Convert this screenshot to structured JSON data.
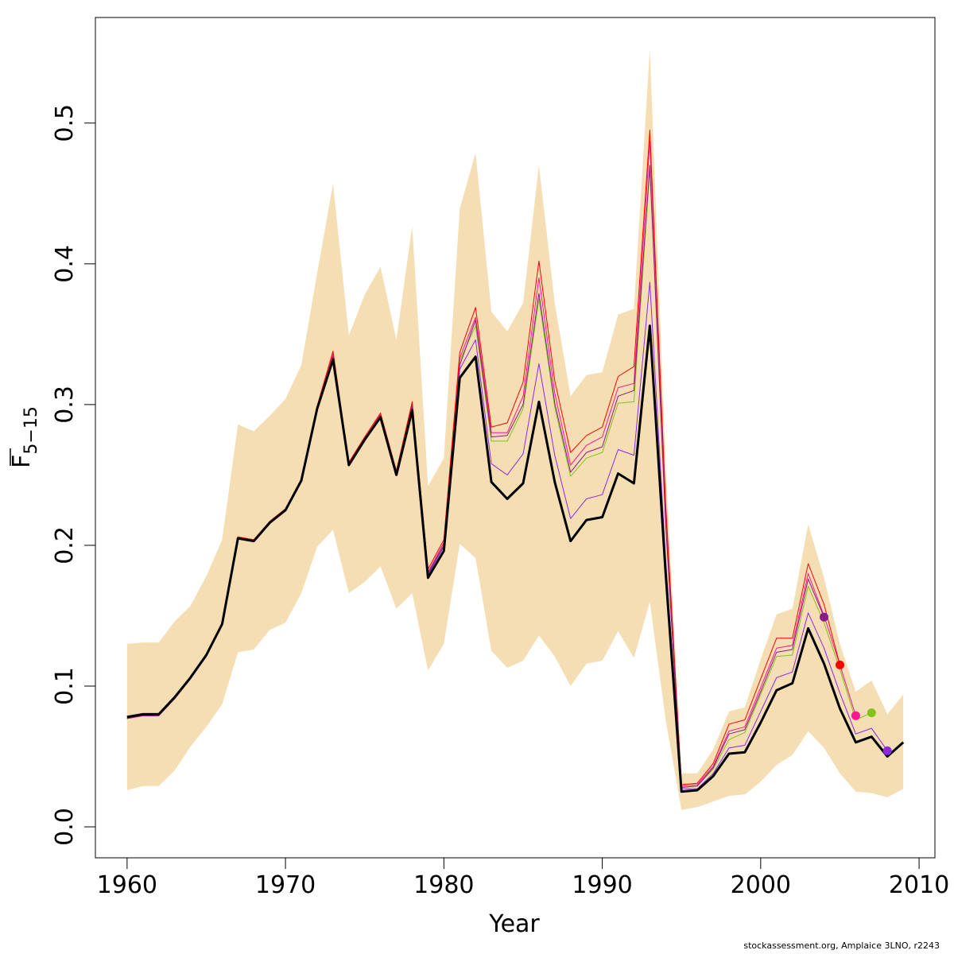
{
  "chart_data": {
    "type": "line",
    "xlabel": "Year",
    "ylabel_main": "F",
    "ylabel_sub": "5−15",
    "xlim": [
      1958,
      2011
    ],
    "ylim": [
      -0.022,
      0.575
    ],
    "x_ticks": [
      1960,
      1970,
      1980,
      1990,
      2000,
      2010
    ],
    "y_ticks": [
      0.0,
      0.1,
      0.2,
      0.3,
      0.4,
      0.5
    ],
    "y_tick_labels": [
      "0.0",
      "0.1",
      "0.2",
      "0.3",
      "0.4",
      "0.5"
    ],
    "band_color": "#F5DEB3",
    "confidence_band": {
      "years": [
        1960,
        1961,
        1962,
        1963,
        1964,
        1965,
        1966,
        1967,
        1968,
        1969,
        1970,
        1971,
        1972,
        1973,
        1974,
        1975,
        1976,
        1977,
        1978,
        1979,
        1980,
        1981,
        1982,
        1983,
        1984,
        1985,
        1986,
        1987,
        1988,
        1989,
        1990,
        1991,
        1992,
        1993,
        1994,
        1995,
        1996,
        1997,
        1998,
        1999,
        2000,
        2001,
        2002,
        2003,
        2004,
        2005,
        2006,
        2007,
        2008,
        2009
      ],
      "lower": [
        0.026,
        0.029,
        0.029,
        0.04,
        0.057,
        0.071,
        0.087,
        0.124,
        0.126,
        0.14,
        0.145,
        0.166,
        0.199,
        0.211,
        0.166,
        0.174,
        0.185,
        0.155,
        0.166,
        0.111,
        0.13,
        0.201,
        0.191,
        0.125,
        0.113,
        0.118,
        0.136,
        0.121,
        0.1,
        0.116,
        0.118,
        0.139,
        0.12,
        0.16,
        0.076,
        0.012,
        0.014,
        0.018,
        0.022,
        0.023,
        0.032,
        0.044,
        0.051,
        0.068,
        0.056,
        0.038,
        0.025,
        0.024,
        0.021,
        0.027
      ],
      "upper": [
        0.13,
        0.131,
        0.131,
        0.146,
        0.157,
        0.178,
        0.204,
        0.286,
        0.281,
        0.292,
        0.304,
        0.328,
        0.393,
        0.457,
        0.349,
        0.378,
        0.398,
        0.346,
        0.427,
        0.242,
        0.262,
        0.439,
        0.479,
        0.366,
        0.352,
        0.372,
        0.47,
        0.372,
        0.306,
        0.321,
        0.323,
        0.364,
        0.368,
        0.553,
        0.258,
        0.038,
        0.038,
        0.055,
        0.082,
        0.085,
        0.119,
        0.151,
        0.155,
        0.215,
        0.177,
        0.13,
        0.096,
        0.104,
        0.08,
        0.094
      ]
    },
    "series": [
      {
        "color": "#000000",
        "width": 3,
        "end_marker": false,
        "years": [
          1960,
          1961,
          1962,
          1963,
          1964,
          1965,
          1966,
          1967,
          1968,
          1969,
          1970,
          1971,
          1972,
          1973,
          1974,
          1975,
          1976,
          1977,
          1978,
          1979,
          1980,
          1981,
          1982,
          1983,
          1984,
          1985,
          1986,
          1987,
          1988,
          1989,
          1990,
          1991,
          1992,
          1993,
          1994,
          1995,
          1996,
          1997,
          1998,
          1999,
          2000,
          2001,
          2002,
          2003,
          2004,
          2005,
          2006,
          2007,
          2008,
          2009
        ],
        "values": [
          0.078,
          0.08,
          0.08,
          0.092,
          0.106,
          0.122,
          0.144,
          0.205,
          0.203,
          0.216,
          0.225,
          0.246,
          0.297,
          0.332,
          0.257,
          0.275,
          0.291,
          0.25,
          0.296,
          0.177,
          0.196,
          0.319,
          0.334,
          0.245,
          0.233,
          0.244,
          0.302,
          0.245,
          0.203,
          0.218,
          0.22,
          0.251,
          0.244,
          0.356,
          0.18,
          0.025,
          0.026,
          0.036,
          0.052,
          0.053,
          0.074,
          0.097,
          0.102,
          0.141,
          0.116,
          0.084,
          0.06,
          0.064,
          0.05,
          0.06
        ]
      },
      {
        "color": "#8A2BE2",
        "width": 1,
        "end_marker": true,
        "years": [
          1960,
          1961,
          1962,
          1963,
          1964,
          1965,
          1966,
          1967,
          1968,
          1969,
          1970,
          1971,
          1972,
          1973,
          1974,
          1975,
          1976,
          1977,
          1978,
          1979,
          1980,
          1981,
          1982,
          1983,
          1984,
          1985,
          1986,
          1987,
          1988,
          1989,
          1990,
          1991,
          1992,
          1993,
          1994,
          1995,
          1996,
          1997,
          1998,
          1999,
          2000,
          2001,
          2002,
          2003,
          2004,
          2005,
          2006,
          2007,
          2008
        ],
        "values": [
          0.077,
          0.079,
          0.079,
          0.091,
          0.105,
          0.121,
          0.144,
          0.205,
          0.203,
          0.216,
          0.225,
          0.246,
          0.297,
          0.333,
          0.258,
          0.276,
          0.292,
          0.251,
          0.298,
          0.179,
          0.199,
          0.325,
          0.346,
          0.258,
          0.25,
          0.265,
          0.329,
          0.264,
          0.219,
          0.233,
          0.236,
          0.268,
          0.264,
          0.387,
          0.19,
          0.027,
          0.027,
          0.038,
          0.056,
          0.058,
          0.082,
          0.106,
          0.11,
          0.152,
          0.127,
          0.095,
          0.066,
          0.07,
          0.054
        ]
      },
      {
        "color": "#7FC31C",
        "width": 1,
        "end_marker": true,
        "years": [
          1960,
          1961,
          1962,
          1963,
          1964,
          1965,
          1966,
          1967,
          1968,
          1969,
          1970,
          1971,
          1972,
          1973,
          1974,
          1975,
          1976,
          1977,
          1978,
          1979,
          1980,
          1981,
          1982,
          1983,
          1984,
          1985,
          1986,
          1987,
          1988,
          1989,
          1990,
          1991,
          1992,
          1993,
          1994,
          1995,
          1996,
          1997,
          1998,
          1999,
          2000,
          2001,
          2002,
          2003,
          2004,
          2005,
          2006,
          2007
        ],
        "values": [
          0.077,
          0.079,
          0.079,
          0.091,
          0.105,
          0.122,
          0.144,
          0.205,
          0.203,
          0.216,
          0.225,
          0.246,
          0.298,
          0.335,
          0.258,
          0.276,
          0.293,
          0.252,
          0.299,
          0.18,
          0.201,
          0.331,
          0.356,
          0.274,
          0.274,
          0.297,
          0.375,
          0.298,
          0.249,
          0.262,
          0.266,
          0.301,
          0.302,
          0.467,
          0.22,
          0.028,
          0.029,
          0.041,
          0.062,
          0.067,
          0.094,
          0.121,
          0.122,
          0.171,
          0.145,
          0.112,
          0.076,
          0.081
        ]
      },
      {
        "color": "#FF1493",
        "width": 1,
        "end_marker": true,
        "years": [
          1960,
          1961,
          1962,
          1963,
          1964,
          1965,
          1966,
          1967,
          1968,
          1969,
          1970,
          1971,
          1972,
          1973,
          1974,
          1975,
          1976,
          1977,
          1978,
          1979,
          1980,
          1981,
          1982,
          1983,
          1984,
          1985,
          1986,
          1987,
          1988,
          1989,
          1990,
          1991,
          1992,
          1993,
          1994,
          1995,
          1996,
          1997,
          1998,
          1999,
          2000,
          2001,
          2002,
          2003,
          2004,
          2005,
          2006
        ],
        "values": [
          0.077,
          0.079,
          0.079,
          0.091,
          0.105,
          0.122,
          0.144,
          0.205,
          0.203,
          0.216,
          0.225,
          0.246,
          0.298,
          0.336,
          0.258,
          0.276,
          0.293,
          0.252,
          0.3,
          0.181,
          0.202,
          0.333,
          0.362,
          0.28,
          0.28,
          0.306,
          0.39,
          0.308,
          0.257,
          0.271,
          0.277,
          0.312,
          0.315,
          0.487,
          0.226,
          0.029,
          0.03,
          0.043,
          0.068,
          0.071,
          0.099,
          0.127,
          0.129,
          0.18,
          0.15,
          0.115,
          0.079
        ]
      },
      {
        "color": "#FF0000",
        "width": 1,
        "end_marker": true,
        "years": [
          1960,
          1961,
          1962,
          1963,
          1964,
          1965,
          1966,
          1967,
          1968,
          1969,
          1970,
          1971,
          1972,
          1973,
          1974,
          1975,
          1976,
          1977,
          1978,
          1979,
          1980,
          1981,
          1982,
          1983,
          1984,
          1985,
          1986,
          1987,
          1988,
          1989,
          1990,
          1991,
          1992,
          1993,
          1994,
          1995,
          1996,
          1997,
          1998,
          1999,
          2000,
          2001,
          2002,
          2003,
          2004,
          2005
        ],
        "values": [
          0.077,
          0.079,
          0.079,
          0.091,
          0.105,
          0.122,
          0.145,
          0.206,
          0.204,
          0.217,
          0.226,
          0.247,
          0.299,
          0.338,
          0.259,
          0.277,
          0.294,
          0.253,
          0.302,
          0.183,
          0.204,
          0.337,
          0.369,
          0.284,
          0.287,
          0.316,
          0.402,
          0.317,
          0.266,
          0.278,
          0.284,
          0.32,
          0.327,
          0.495,
          0.23,
          0.03,
          0.031,
          0.045,
          0.073,
          0.076,
          0.105,
          0.134,
          0.134,
          0.187,
          0.158,
          0.115
        ]
      },
      {
        "color": "#8B1A89",
        "width": 1,
        "end_marker": true,
        "years": [
          1960,
          1961,
          1962,
          1963,
          1964,
          1965,
          1966,
          1967,
          1968,
          1969,
          1970,
          1971,
          1972,
          1973,
          1974,
          1975,
          1976,
          1977,
          1978,
          1979,
          1980,
          1981,
          1982,
          1983,
          1984,
          1985,
          1986,
          1987,
          1988,
          1989,
          1990,
          1991,
          1992,
          1993,
          1994,
          1995,
          1996,
          1997,
          1998,
          1999,
          2000,
          2001,
          2002,
          2003,
          2004
        ],
        "values": [
          0.077,
          0.079,
          0.079,
          0.091,
          0.105,
          0.122,
          0.144,
          0.205,
          0.203,
          0.216,
          0.225,
          0.246,
          0.298,
          0.334,
          0.258,
          0.276,
          0.292,
          0.251,
          0.299,
          0.18,
          0.2,
          0.328,
          0.36,
          0.277,
          0.278,
          0.3,
          0.379,
          0.301,
          0.252,
          0.266,
          0.27,
          0.306,
          0.31,
          0.47,
          0.215,
          0.028,
          0.029,
          0.042,
          0.066,
          0.069,
          0.096,
          0.124,
          0.126,
          0.176,
          0.149
        ]
      }
    ]
  },
  "footer": "stockassessment.org, Amplaice 3LNO, r2243"
}
